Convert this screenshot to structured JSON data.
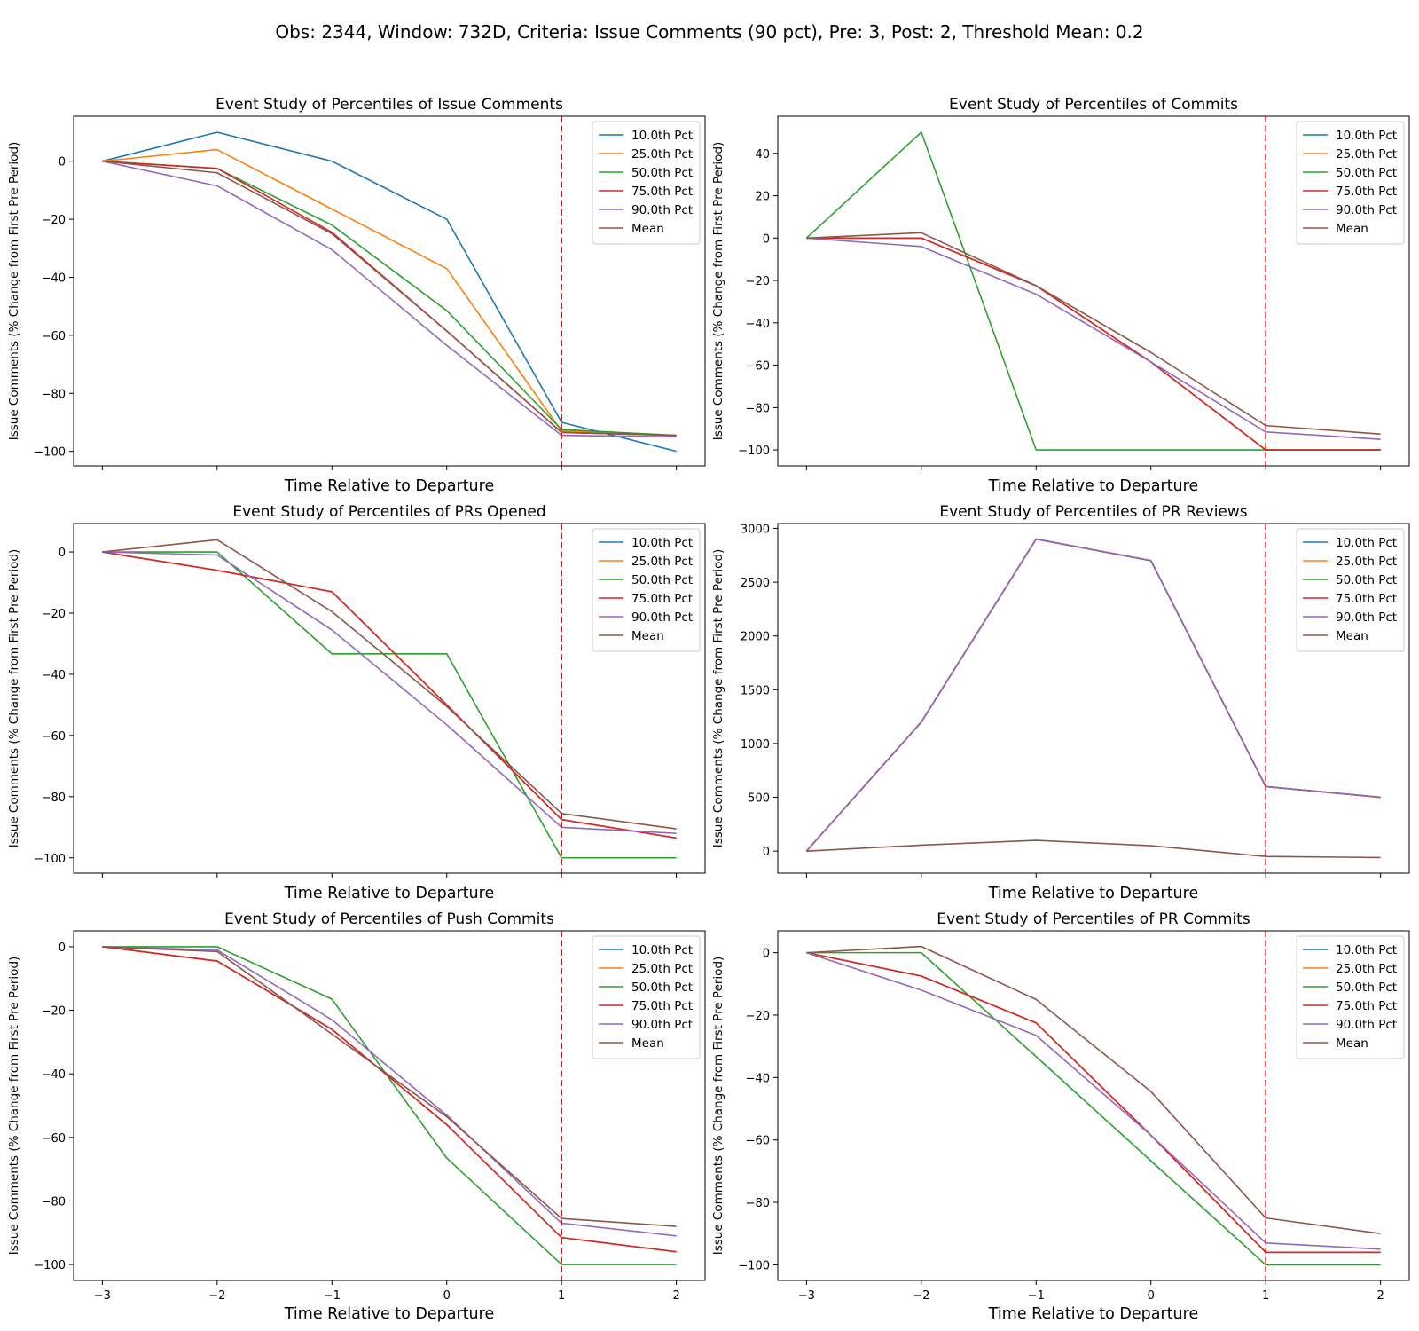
{
  "suptitle": "Obs: 2344, Window: 732D, Criteria: Issue Comments (90 pct), Pre: 3, Post: 2, Threshold Mean: 0.2",
  "colors": {
    "10.0th Pct": "#1f77b4",
    "25.0th Pct": "#ff7f0e",
    "50.0th Pct": "#2ca02c",
    "75.0th Pct": "#d62728",
    "90.0th Pct": "#9467bd",
    "Mean": "#8c564b",
    "event_line": "#ff0000"
  },
  "chart_data": [
    {
      "type": "line",
      "title": "Event Study of Percentiles of Issue Comments",
      "xlabel": "Time Relative to Departure",
      "ylabel": "Issue Comments (% Change from First Pre Period)",
      "x": [
        -3,
        -2,
        -1,
        0,
        1,
        2
      ],
      "xlim": [
        -3.25,
        2.25
      ],
      "ylim": [
        -105,
        15.5
      ],
      "yticks": [
        0,
        -20,
        -40,
        -60,
        -80,
        -100
      ],
      "show_xticklabels": false,
      "event_x": 1,
      "legend": "top-right",
      "grid": false,
      "series": [
        {
          "name": "10.0th Pct",
          "values": [
            0,
            10,
            0,
            -20,
            -90,
            -100
          ]
        },
        {
          "name": "25.0th Pct",
          "values": [
            0,
            4,
            -16.5,
            -37,
            -93,
            -94.5
          ]
        },
        {
          "name": "50.0th Pct",
          "values": [
            0,
            -2.5,
            -22,
            -51.5,
            -92.5,
            -94.5
          ]
        },
        {
          "name": "75.0th Pct",
          "values": [
            0,
            -2.5,
            -24.5,
            -58.5,
            -93.5,
            -94.5
          ]
        },
        {
          "name": "90.0th Pct",
          "values": [
            0,
            -8.5,
            -30.5,
            -63.5,
            -94.5,
            -95
          ]
        },
        {
          "name": "Mean",
          "values": [
            0,
            -4,
            -25,
            -58.5,
            -93.5,
            -94.5
          ]
        }
      ]
    },
    {
      "type": "line",
      "title": "Event Study of Percentiles of Commits",
      "xlabel": "Time Relative to Departure",
      "ylabel": "Issue Comments (% Change from First Pre Period)",
      "x": [
        -3,
        -2,
        -1,
        0,
        1,
        2
      ],
      "xlim": [
        -3.25,
        2.25
      ],
      "ylim": [
        -107.5,
        57.5
      ],
      "yticks": [
        40,
        20,
        0,
        -20,
        -40,
        -60,
        -80,
        -100
      ],
      "show_xticklabels": false,
      "event_x": 1,
      "legend": "top-right",
      "grid": false,
      "series": [
        {
          "name": "10.0th Pct",
          "values": [
            0,
            0,
            -22.5,
            -58.5,
            -100,
            -100
          ]
        },
        {
          "name": "25.0th Pct",
          "values": [
            0,
            0,
            -22.5,
            -58.5,
            -100,
            -100
          ]
        },
        {
          "name": "50.0th Pct",
          "values": [
            0,
            50,
            -100,
            -100,
            -100,
            -100
          ]
        },
        {
          "name": "75.0th Pct",
          "values": [
            0,
            0,
            -22.5,
            -58.5,
            -100,
            -100
          ]
        },
        {
          "name": "90.0th Pct",
          "values": [
            0,
            -4,
            -26.5,
            -58.5,
            -91.5,
            -95
          ]
        },
        {
          "name": "Mean",
          "values": [
            0,
            2.5,
            -22.5,
            -54,
            -88.5,
            -92.5
          ]
        }
      ]
    },
    {
      "type": "line",
      "title": "Event Study of Percentiles of PRs Opened",
      "xlabel": "Time Relative to Departure",
      "ylabel": "Issue Comments (% Change from First Pre Period)",
      "x": [
        -3,
        -2,
        -1,
        0,
        1,
        2
      ],
      "xlim": [
        -3.25,
        2.25
      ],
      "ylim": [
        -105,
        9.3
      ],
      "yticks": [
        0,
        -20,
        -40,
        -60,
        -80,
        -100
      ],
      "show_xticklabels": false,
      "event_x": 1,
      "legend": "top-right",
      "grid": false,
      "series": [
        {
          "name": "10.0th Pct",
          "values": [
            0,
            -6,
            -13,
            -50,
            -87.5,
            -93.5
          ]
        },
        {
          "name": "25.0th Pct",
          "values": [
            0,
            -6,
            -13,
            -50,
            -87.5,
            -93.5
          ]
        },
        {
          "name": "50.0th Pct",
          "values": [
            0,
            0,
            -33.3,
            -33.3,
            -100,
            -100
          ]
        },
        {
          "name": "75.0th Pct",
          "values": [
            0,
            -6,
            -13,
            -50,
            -87.5,
            -93.5
          ]
        },
        {
          "name": "90.0th Pct",
          "values": [
            0,
            -1,
            -25.5,
            -56.5,
            -90,
            -92
          ]
        },
        {
          "name": "Mean",
          "values": [
            0,
            4,
            -19.5,
            -50.5,
            -85.5,
            -90.5
          ]
        }
      ]
    },
    {
      "type": "line",
      "title": "Event Study of Percentiles of PR Reviews",
      "xlabel": "Time Relative to Departure",
      "ylabel": "Issue Comments (% Change from First Pre Period)",
      "x": [
        -3,
        -2,
        -1,
        0,
        1,
        2
      ],
      "xlim": [
        -3.25,
        2.25
      ],
      "ylim": [
        -205,
        3045
      ],
      "yticks": [
        3000,
        2500,
        2000,
        1500,
        1000,
        500,
        0
      ],
      "show_xticklabels": false,
      "event_x": 1,
      "legend": "top-right",
      "grid": false,
      "series": [
        {
          "name": "10.0th Pct",
          "values": [
            0,
            1200,
            2900,
            2700,
            600,
            500
          ]
        },
        {
          "name": "25.0th Pct",
          "values": [
            0,
            1200,
            2900,
            2700,
            600,
            500
          ]
        },
        {
          "name": "50.0th Pct",
          "values": [
            0,
            1200,
            2900,
            2700,
            600,
            500
          ]
        },
        {
          "name": "75.0th Pct",
          "values": [
            0,
            1200,
            2900,
            2700,
            600,
            500
          ]
        },
        {
          "name": "90.0th Pct",
          "values": [
            0,
            1200,
            2900,
            2700,
            600,
            500
          ]
        },
        {
          "name": "Mean",
          "values": [
            0,
            55,
            100,
            50,
            -50,
            -60
          ]
        }
      ]
    },
    {
      "type": "line",
      "title": "Event Study of Percentiles of Push Commits",
      "xlabel": "Time Relative to Departure",
      "ylabel": "Issue Comments (% Change from First Pre Period)",
      "x": [
        -3,
        -2,
        -1,
        0,
        1,
        2
      ],
      "xlim": [
        -3.25,
        2.25
      ],
      "ylim": [
        -105,
        5
      ],
      "yticks": [
        0,
        -20,
        -40,
        -60,
        -80,
        -100
      ],
      "show_xticklabels": true,
      "event_x": 1,
      "legend": "top-right",
      "grid": false,
      "series": [
        {
          "name": "10.0th Pct",
          "values": [
            0,
            -4.5,
            -26,
            -56,
            -91.5,
            -96
          ]
        },
        {
          "name": "25.0th Pct",
          "values": [
            0,
            -4.5,
            -26,
            -56,
            -91.5,
            -96
          ]
        },
        {
          "name": "50.0th Pct",
          "values": [
            0,
            0,
            -16.5,
            -66.5,
            -100,
            -100
          ]
        },
        {
          "name": "75.0th Pct",
          "values": [
            0,
            -4.5,
            -26,
            -56,
            -91.5,
            -96
          ]
        },
        {
          "name": "90.0th Pct",
          "values": [
            0,
            -1,
            -23,
            -53,
            -87,
            -91
          ]
        },
        {
          "name": "Mean",
          "values": [
            0,
            -1.5,
            -27.5,
            -53.5,
            -85.5,
            -88
          ]
        }
      ]
    },
    {
      "type": "line",
      "title": "Event Study of Percentiles of PR Commits",
      "xlabel": "Time Relative to Departure",
      "ylabel": "Issue Comments (% Change from First Pre Period)",
      "x": [
        -3,
        -2,
        -1,
        0,
        1,
        2
      ],
      "xlim": [
        -3.25,
        2.25
      ],
      "ylim": [
        -105,
        7
      ],
      "yticks": [
        0,
        -20,
        -40,
        -60,
        -80,
        -100
      ],
      "show_xticklabels": true,
      "event_x": 1,
      "legend": "top-right",
      "grid": false,
      "series": [
        {
          "name": "10.0th Pct",
          "values": [
            0,
            -7.5,
            -22.5,
            -58.5,
            -96,
            -96
          ]
        },
        {
          "name": "25.0th Pct",
          "values": [
            0,
            -7.5,
            -22.5,
            -58.5,
            -96,
            -96
          ]
        },
        {
          "name": "50.0th Pct",
          "values": [
            0,
            0,
            -33.3,
            -66.7,
            -100,
            -100
          ]
        },
        {
          "name": "75.0th Pct",
          "values": [
            0,
            -7.5,
            -22.5,
            -58.5,
            -96,
            -96
          ]
        },
        {
          "name": "90.0th Pct",
          "values": [
            0,
            -12,
            -26.5,
            -58.5,
            -93,
            -95
          ]
        },
        {
          "name": "Mean",
          "values": [
            0,
            2,
            -15,
            -44.5,
            -85,
            -90
          ]
        }
      ]
    }
  ]
}
